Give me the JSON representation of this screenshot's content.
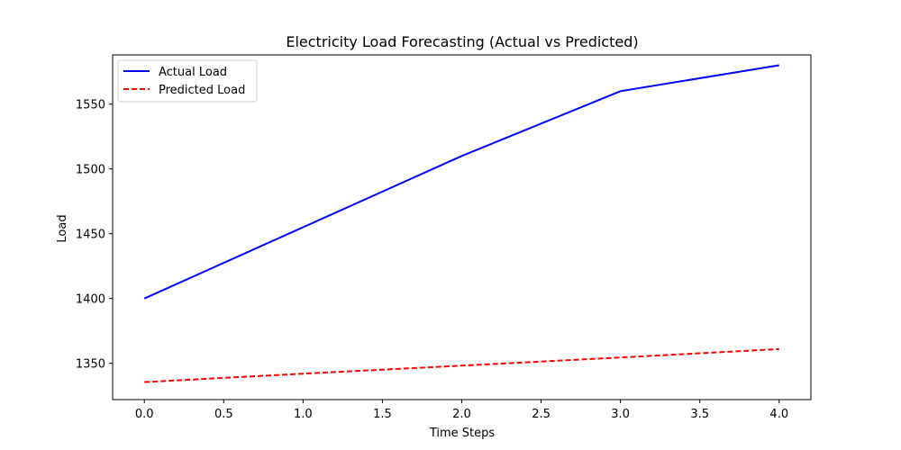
{
  "chart_data": {
    "type": "line",
    "title": "Electricity Load Forecasting (Actual vs Predicted)",
    "xlabel": "Time Steps",
    "ylabel": "Load",
    "xlim": [
      -0.2,
      4.2
    ],
    "ylim": [
      1322,
      1588
    ],
    "xticks": [
      0.0,
      0.5,
      1.0,
      1.5,
      2.0,
      2.5,
      3.0,
      3.5,
      4.0
    ],
    "xtick_labels": [
      "0.0",
      "0.5",
      "1.0",
      "1.5",
      "2.0",
      "2.5",
      "3.0",
      "3.5",
      "4.0"
    ],
    "yticks": [
      1350,
      1400,
      1450,
      1500,
      1550
    ],
    "ytick_labels": [
      "1350",
      "1400",
      "1450",
      "1500",
      "1550"
    ],
    "grid": false,
    "legend_position": "top-left",
    "x": [
      0,
      1,
      2,
      3,
      4
    ],
    "series": [
      {
        "name": "Actual Load",
        "values": [
          1400,
          1455,
          1510,
          1560,
          1580
        ],
        "color": "#0000ff",
        "style": "solid"
      },
      {
        "name": "Predicted Load",
        "values": [
          1335.5,
          1342,
          1348.2,
          1354.5,
          1361
        ],
        "color": "#ff0000",
        "style": "dashed"
      }
    ]
  }
}
